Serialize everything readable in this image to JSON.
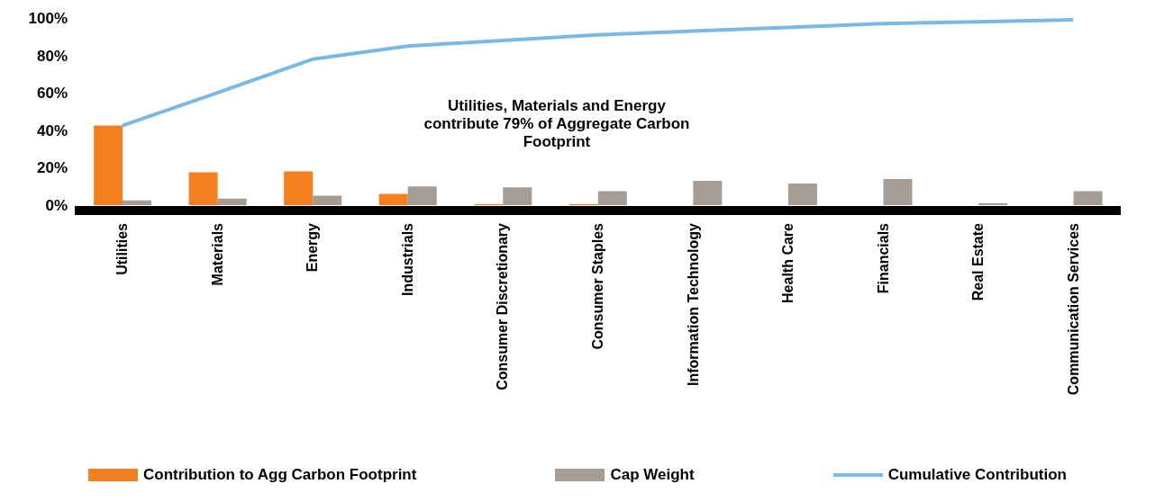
{
  "chart_data": {
    "type": "bar",
    "categories": [
      "Utilities",
      "Materials",
      "Energy",
      "Industrials",
      "Consumer Discretionary",
      "Consumer Staples",
      "Information Technology",
      "Health Care",
      "Financials",
      "Real Estate",
      "Communication Services"
    ],
    "series": [
      {
        "name": "Contribution to Agg Carbon Footprint",
        "color": "#f47f20",
        "values": [
          42.5,
          17.5,
          18,
          6,
          0.5,
          0.5,
          0,
          0,
          0,
          0,
          0
        ]
      },
      {
        "name": "Cap Weight",
        "color": "#a59d95",
        "values": [
          2.5,
          3.5,
          5,
          10,
          9.5,
          7.5,
          13,
          11.5,
          14,
          1,
          7.5
        ]
      },
      {
        "name": "Cumulative Contribution",
        "type": "line",
        "color": "#7ab8e6",
        "values": [
          42.5,
          60,
          78,
          85,
          88,
          91,
          93,
          95,
          97,
          98,
          99
        ]
      }
    ],
    "ylim": [
      0,
      100
    ],
    "yticks": [
      {
        "value": 0,
        "label": "0%"
      },
      {
        "value": 20,
        "label": "20%"
      },
      {
        "value": 40,
        "label": "40%"
      },
      {
        "value": 60,
        "label": "60%"
      },
      {
        "value": 80,
        "label": "80%"
      },
      {
        "value": 100,
        "label": "100%"
      }
    ],
    "grid": false,
    "legend": "bottom",
    "marker": "none",
    "annotations": [
      "Utilities, Materials and Energy contribute 79% of Aggregate Carbon Footprint"
    ]
  }
}
